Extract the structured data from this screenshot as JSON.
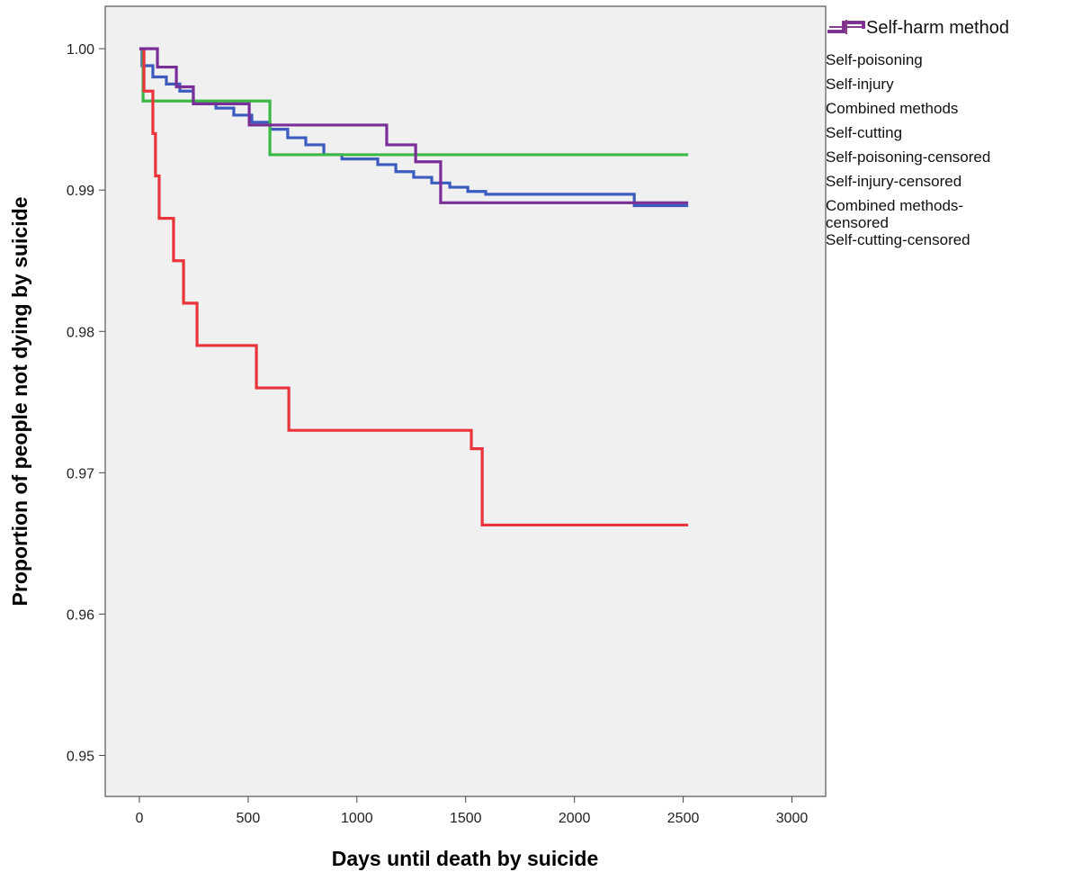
{
  "chart_data": {
    "type": "line",
    "step": true,
    "x_label": "Days until death by suicide",
    "y_label": "Proportion of people not dying by suicide",
    "legend_title": "Self-harm method",
    "xlim": [
      -157,
      3155
    ],
    "ylim": [
      0.9471,
      1.003
    ],
    "xticks": [
      0,
      500,
      1000,
      1500,
      2000,
      2500,
      3000
    ],
    "yticks": [
      0.95,
      0.96,
      0.97,
      0.98,
      0.99,
      {
        "value": 1,
        "label": "1.00"
      }
    ],
    "series": [
      {
        "name": "Self-poisoning",
        "color": "#3d5cc0",
        "x": [
          0,
          12,
          62,
          124,
          186,
          248,
          352,
          434,
          517,
          600,
          682,
          765,
          848,
          931,
          1096,
          1179,
          1261,
          1344,
          1427,
          1510,
          1592,
          2275,
          2523
        ],
        "values": [
          1,
          0.9988,
          0.998,
          0.9975,
          0.997,
          0.9962,
          0.9958,
          0.9953,
          0.9948,
          0.9943,
          0.9937,
          0.9932,
          0.9925,
          0.9922,
          0.9918,
          0.9913,
          0.9909,
          0.9905,
          0.9902,
          0.9899,
          0.9897,
          0.9889,
          0.9889
        ]
      },
      {
        "name": "Self-injury",
        "color": "#3cb846",
        "x": [
          0,
          17,
          600,
          2523
        ],
        "values": [
          1,
          0.9963,
          0.9925,
          0.9925
        ]
      },
      {
        "name": "Combined methods",
        "color": "#e8343a",
        "x": [
          0,
          21,
          62,
          74,
          91,
          157,
          203,
          265,
          538,
          687,
          1526,
          1576,
          2523
        ],
        "values": [
          1,
          0.997,
          0.994,
          0.991,
          0.988,
          0.985,
          0.982,
          0.979,
          0.976,
          0.973,
          0.9717,
          0.9663,
          0.9663
        ]
      },
      {
        "name": "Self-cutting",
        "color": "#7a2e98",
        "x": [
          0,
          83,
          170,
          248,
          505,
          1137,
          1270,
          1385,
          2523
        ],
        "values": [
          1,
          0.9987,
          0.9973,
          0.9961,
          0.9946,
          0.9932,
          0.992,
          0.9891,
          0.9891
        ]
      }
    ],
    "censored_series": [
      {
        "name": "Self-poisoning-censored",
        "color": "#3d5cc0"
      },
      {
        "name": "Self-injury-censored",
        "color": "#3cb846"
      },
      {
        "name": "Combined methods-censored",
        "color": "#e8343a"
      },
      {
        "name": "Self-cutting-censored",
        "color": "#7a2e98"
      }
    ]
  }
}
